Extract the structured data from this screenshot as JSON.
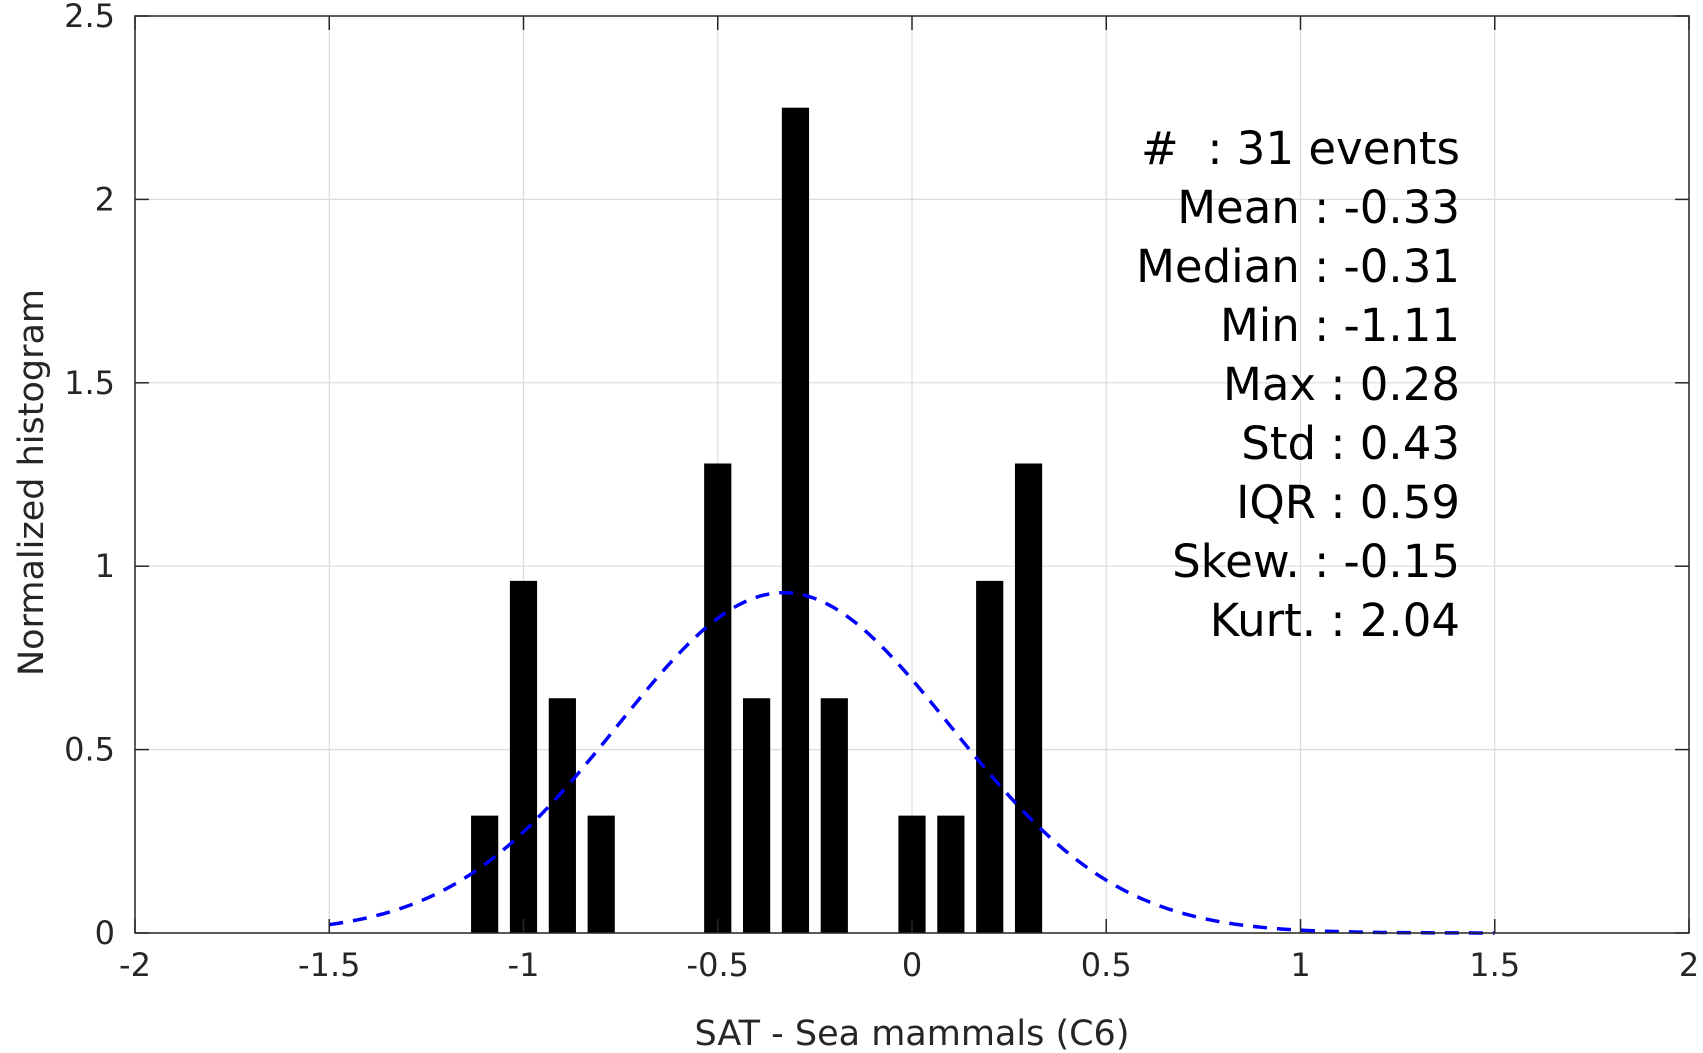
{
  "chart_data": {
    "type": "bar",
    "xlabel": "SAT - Sea mammals (C6)",
    "ylabel": "Normalized histogram",
    "xlim": [
      -2,
      2
    ],
    "ylim": [
      0,
      2.5
    ],
    "grid": true,
    "x_ticks": [
      -2,
      -1.5,
      -1,
      -0.5,
      0,
      0.5,
      1,
      1.5,
      2
    ],
    "x_tick_labels": [
      "-2",
      "-1.5",
      "-1",
      "-0.5",
      "0",
      "0.5",
      "1",
      "1.5",
      "2"
    ],
    "y_ticks": [
      0,
      0.5,
      1,
      1.5,
      2,
      2.5
    ],
    "y_tick_labels": [
      "0",
      "0.5",
      "1",
      "1.5",
      "2",
      "2.5"
    ],
    "bar_width": 0.07,
    "bar_color": "#000000",
    "bars": [
      {
        "x": -1.1,
        "y": 0.32
      },
      {
        "x": -1.0,
        "y": 0.96
      },
      {
        "x": -0.9,
        "y": 0.64
      },
      {
        "x": -0.8,
        "y": 0.32
      },
      {
        "x": -0.5,
        "y": 1.28
      },
      {
        "x": -0.4,
        "y": 0.64
      },
      {
        "x": -0.3,
        "y": 2.25
      },
      {
        "x": -0.2,
        "y": 0.64
      },
      {
        "x": 0.0,
        "y": 0.32
      },
      {
        "x": 0.1,
        "y": 0.32
      },
      {
        "x": 0.2,
        "y": 0.96
      },
      {
        "x": 0.3,
        "y": 1.28
      }
    ],
    "fit": {
      "type": "normal",
      "mean": -0.33,
      "std": 0.43,
      "x_range": [
        -1.5,
        1.5
      ],
      "color": "#0000ff",
      "style": "dashed"
    },
    "stats_lines": [
      "#  : 31 events",
      "Mean : -0.33",
      "Median : -0.31",
      "Min : -1.11",
      "Max : 0.28",
      "Std : 0.43",
      "IQR : 0.59",
      "Skew. : -0.15",
      "Kurt. : 2.04"
    ]
  }
}
